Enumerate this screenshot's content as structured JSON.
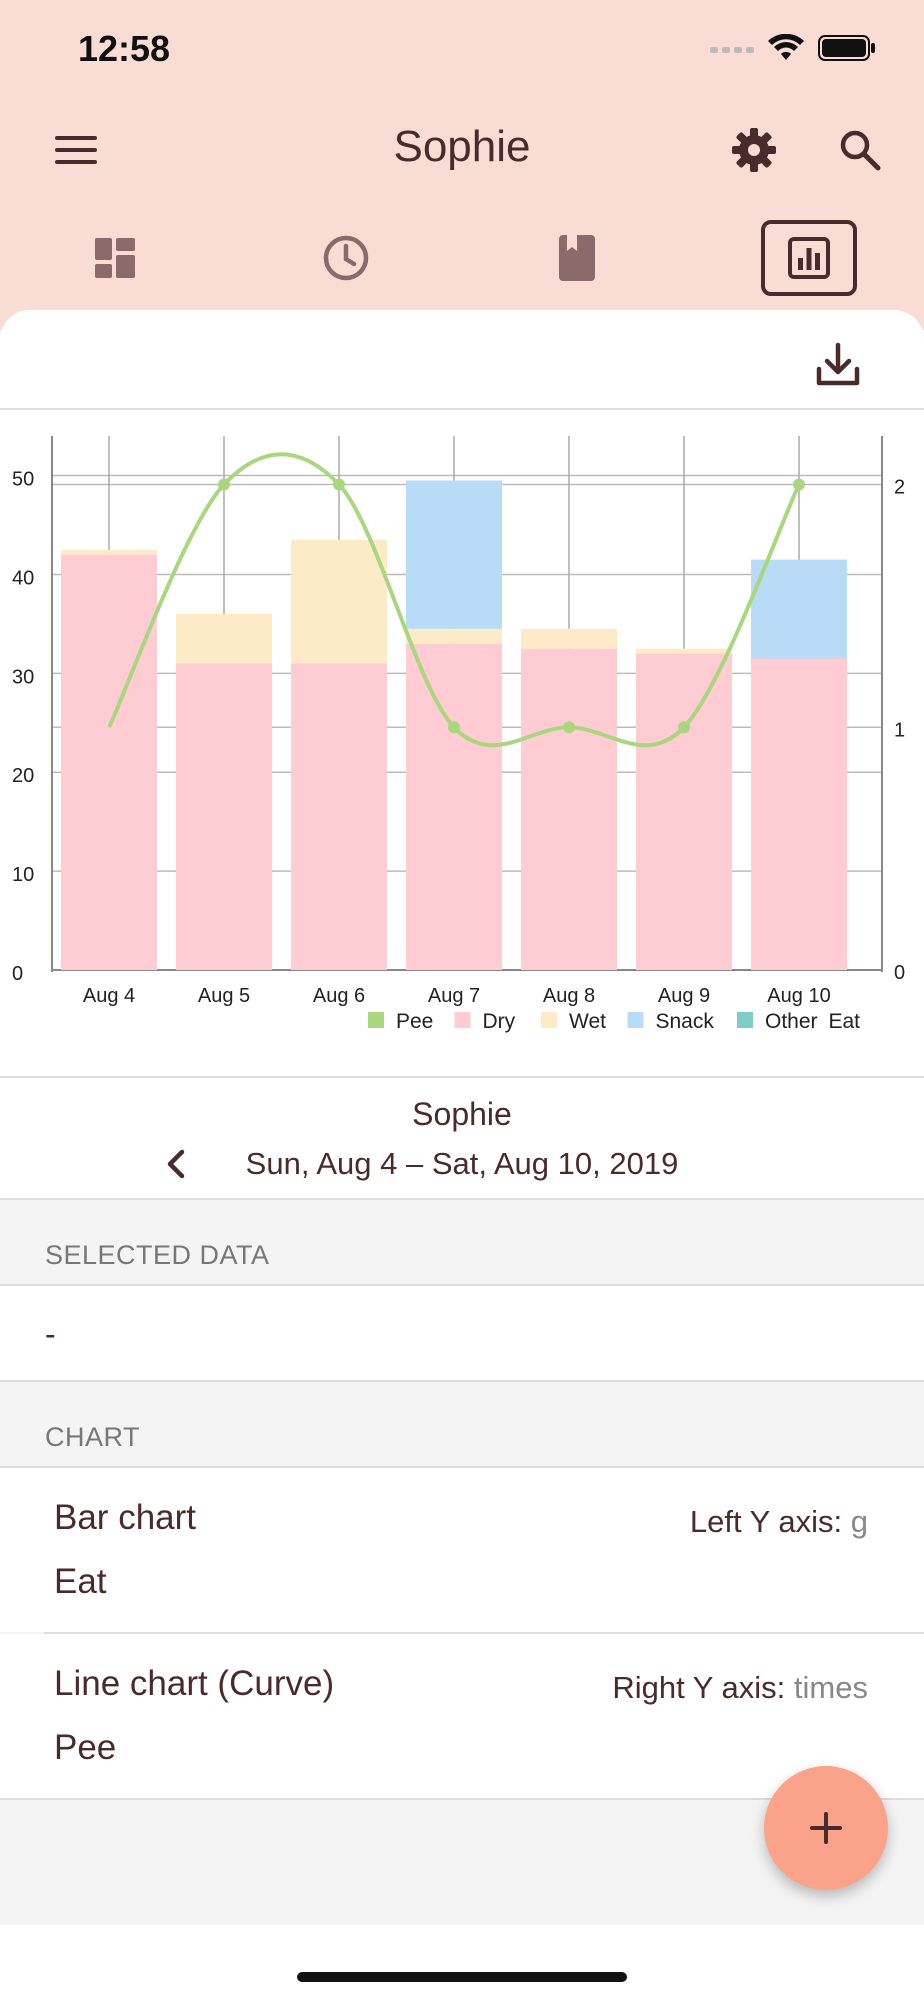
{
  "status": {
    "time": "12:58"
  },
  "header": {
    "title": "Sophie"
  },
  "tabs": [
    {
      "name": "dashboard",
      "active": false
    },
    {
      "name": "history",
      "active": false
    },
    {
      "name": "journal",
      "active": false
    },
    {
      "name": "charts",
      "active": true
    }
  ],
  "chart_data": {
    "type": "bar",
    "categories": [
      "Aug 4",
      "Aug 5",
      "Aug 6",
      "Aug 7",
      "Aug 8",
      "Aug 9",
      "Aug 10"
    ],
    "series": [
      {
        "name": "Dry",
        "color": "#ffccd3",
        "values": [
          42,
          31,
          31,
          33,
          32.5,
          32,
          31.5
        ]
      },
      {
        "name": "Wet",
        "color": "#fdebc8",
        "values": [
          0.5,
          5,
          12.5,
          1.5,
          2,
          0.5,
          0
        ]
      },
      {
        "name": "Snack",
        "color": "#b8dcf6",
        "values": [
          0,
          0,
          0,
          15,
          0,
          0,
          10
        ]
      },
      {
        "name": "Other",
        "color": "#7ecbc8",
        "values": [
          0,
          0,
          0,
          0,
          0,
          0,
          0
        ]
      }
    ],
    "line_series": {
      "name": "Pee",
      "color": "#a9d67f",
      "values": [
        1,
        2,
        2,
        1,
        1,
        1,
        2
      ]
    },
    "left_axis": {
      "ylim": [
        0,
        54
      ],
      "ticks": [
        "0",
        "10",
        "20",
        "30",
        "40",
        "50"
      ]
    },
    "right_axis": {
      "ylim": [
        0,
        2.2
      ],
      "ticks": [
        "0",
        "1",
        "2"
      ]
    },
    "legend": [
      "Pee",
      "Dry",
      "Wet",
      "Snack",
      "Other"
    ],
    "legend_suffix": "Eat",
    "legend_position": "bottom-right",
    "grid": true
  },
  "nav": {
    "name": "Sophie",
    "range": "Sun, Aug 4 – Sat, Aug 10, 2019"
  },
  "sections": {
    "selected": {
      "label": "SELECTED DATA",
      "value": "-"
    },
    "chart": {
      "label": "CHART"
    }
  },
  "config": {
    "bar": {
      "title": "Bar chart",
      "subtitle": "Eat",
      "axis_label": "Left Y axis:",
      "axis_unit": "g"
    },
    "line": {
      "title": "Line chart (Curve)",
      "subtitle": "Pee",
      "axis_label": "Right Y axis:",
      "axis_unit": "times"
    }
  }
}
